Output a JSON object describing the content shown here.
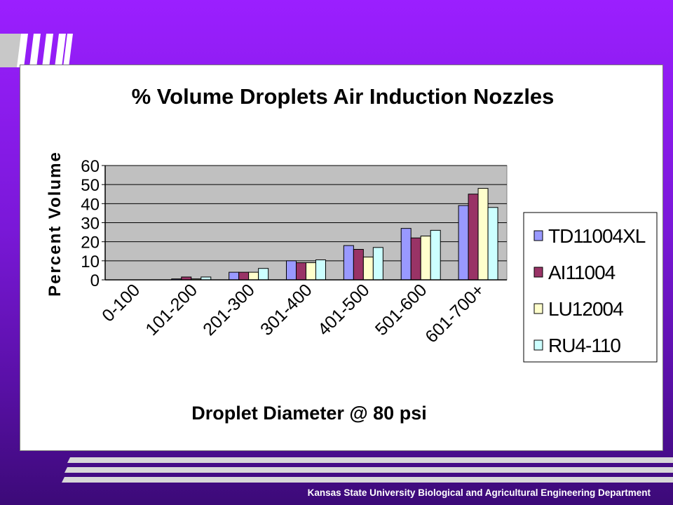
{
  "footer": {
    "text": "Kansas State University Biological and Agricultural Engineering Department"
  },
  "colors": {
    "plot_area": "#c0c0c0",
    "panel": "#ffffff"
  },
  "chart_data": {
    "type": "bar",
    "title": "% Volume Droplets Air Induction Nozzles",
    "xlabel": "Droplet Diameter @ 80 psi",
    "ylabel": "Percent Volume",
    "ylim": [
      0,
      60
    ],
    "yticks": [
      "0",
      "10",
      "20",
      "30",
      "40",
      "50",
      "60"
    ],
    "grid": true,
    "legend_position": "right",
    "categories": [
      "0-100",
      "101-200",
      "201-300",
      "301-400",
      "401-500",
      "501-600",
      "601-700+"
    ],
    "series": [
      {
        "name": "TD11004XL",
        "color": "#9999ff",
        "values": [
          0,
          0.5,
          4,
          10,
          18,
          27,
          39
        ]
      },
      {
        "name": "AI11004",
        "color": "#993366",
        "values": [
          0,
          1.5,
          4,
          9,
          16,
          22,
          45
        ]
      },
      {
        "name": "LU12004",
        "color": "#ffffcc",
        "values": [
          0,
          0.5,
          4,
          9,
          12,
          23,
          48
        ]
      },
      {
        "name": "RU4-110",
        "color": "#ccffff",
        "values": [
          0,
          1.5,
          6,
          10.5,
          17,
          26,
          38
        ]
      }
    ]
  }
}
